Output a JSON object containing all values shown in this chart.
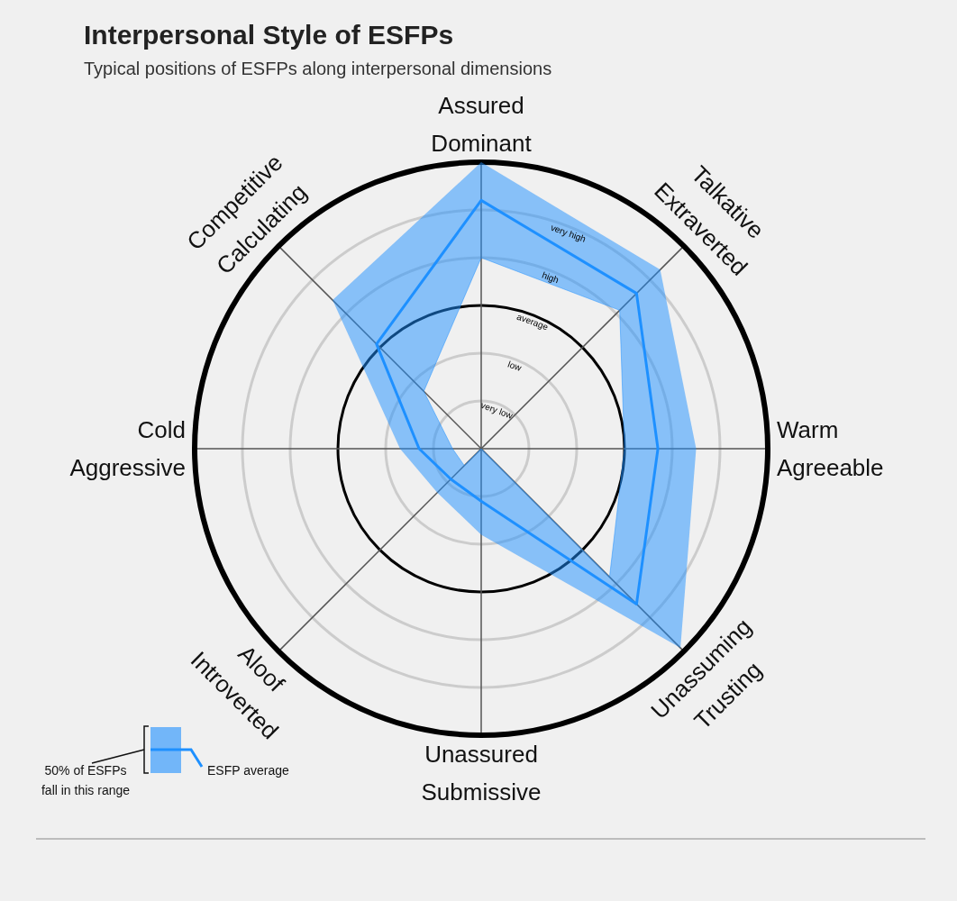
{
  "chart_data": {
    "type": "radar",
    "title": "Interpersonal Style of ESFPs",
    "subtitle": "Typical positions of ESFPs along interpersonal dimensions",
    "categories": [
      "Assured\nDominant",
      "Talkative\nExtraverted",
      "Warm\nAgreeable",
      "Unassuming\nTrusting",
      "Unassured\nSubmissive",
      "Aloof\nIntroverted",
      "Cold\nAggressive",
      "Competitive\nCalculating"
    ],
    "series": [
      {
        "type": "area",
        "color": "#1e90ff",
        "values": [
          6.0,
          5.3,
          4.5,
          5.9,
          1.8,
          1.3,
          1.7,
          4.4
        ]
      },
      {
        "type": "area",
        "color": "#1e90ff",
        "values": [
          4.0,
          4.1,
          3.0,
          3.8,
          0,
          0.5,
          0.6,
          1.7
        ]
      },
      {
        "name": "ESFP average",
        "color": "#1e90ff",
        "values": [
          5.2,
          4.6,
          3.7,
          4.6,
          1.1,
          0.9,
          1.3,
          3.1
        ]
      }
    ],
    "ylim": [
      0,
      6
    ],
    "yticks": [
      {
        "value": 1,
        "label": "very low"
      },
      {
        "value": 2,
        "label": "low"
      },
      {
        "value": 3,
        "label": "average"
      },
      {
        "value": 4,
        "label": "high"
      },
      {
        "value": 5,
        "label": "very high"
      }
    ],
    "grid": true,
    "legend": "bottom left",
    "annotations": [
      "50% of ESFPs\nfall in this range"
    ]
  }
}
